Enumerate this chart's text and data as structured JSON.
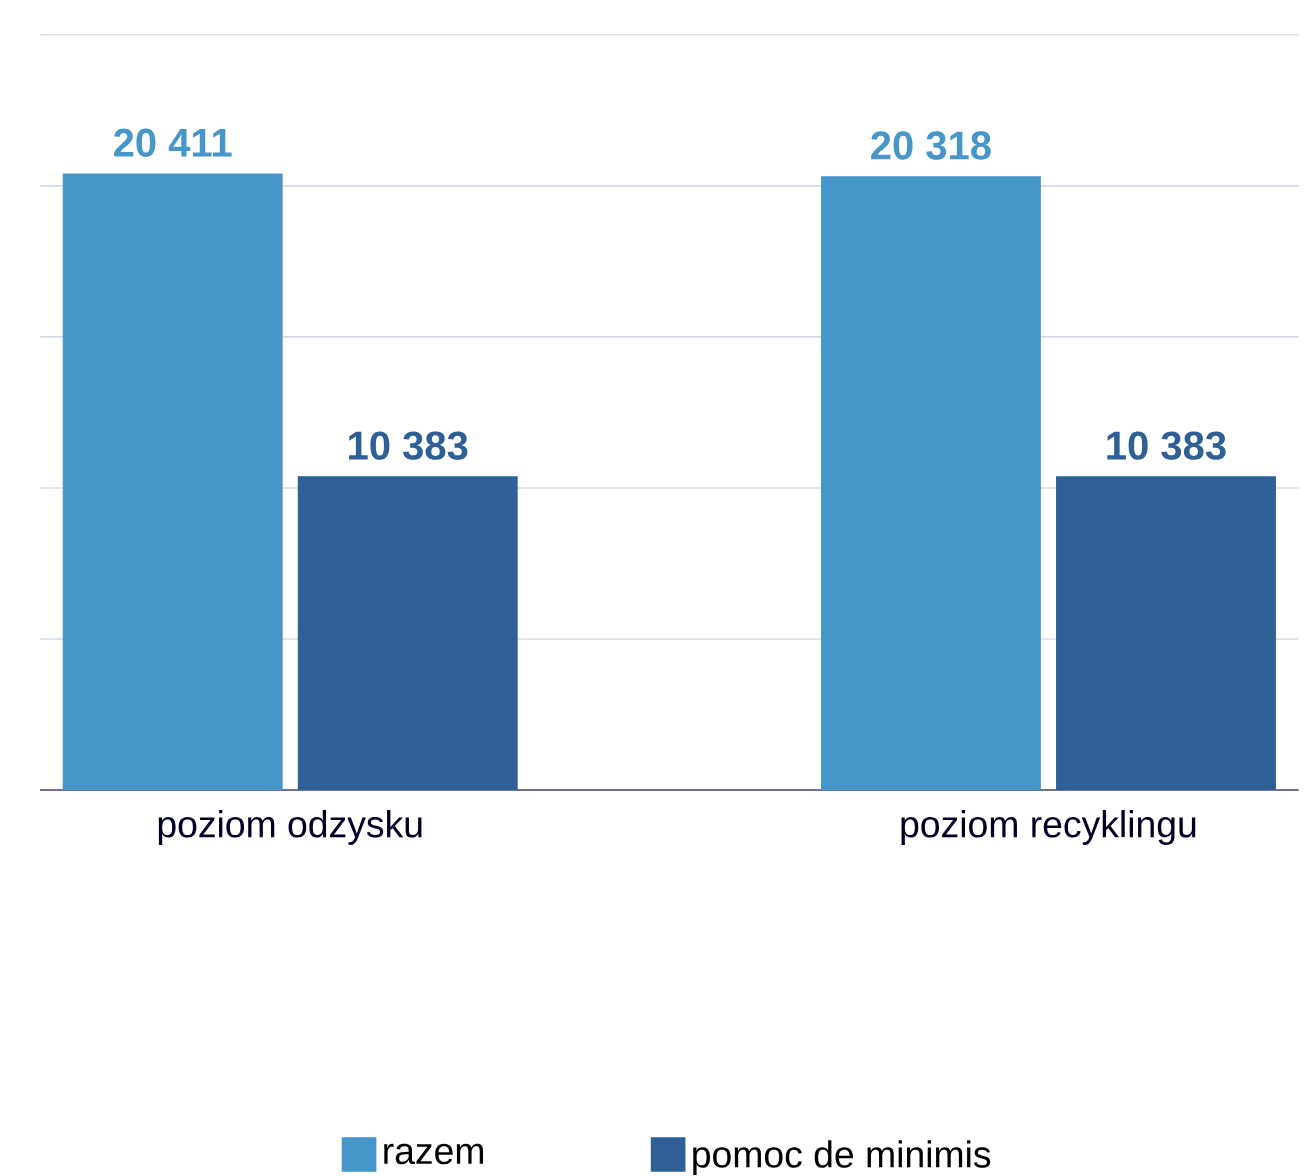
{
  "chart_data": {
    "type": "bar",
    "categories": [
      "poziom odzysku",
      "poziom recyklingu"
    ],
    "series": [
      {
        "name": "razem",
        "color": "#4696c9",
        "values": [
          20411,
          20318
        ],
        "value_labels": [
          "20 411",
          "20 318"
        ]
      },
      {
        "name": "pomoc de minimis",
        "color": "#2e5f96",
        "values": [
          10383,
          10383
        ],
        "value_labels": [
          "10 383",
          "10 383"
        ]
      }
    ],
    "grid": "y",
    "tick_labels": "x",
    "legend": "bottom"
  }
}
